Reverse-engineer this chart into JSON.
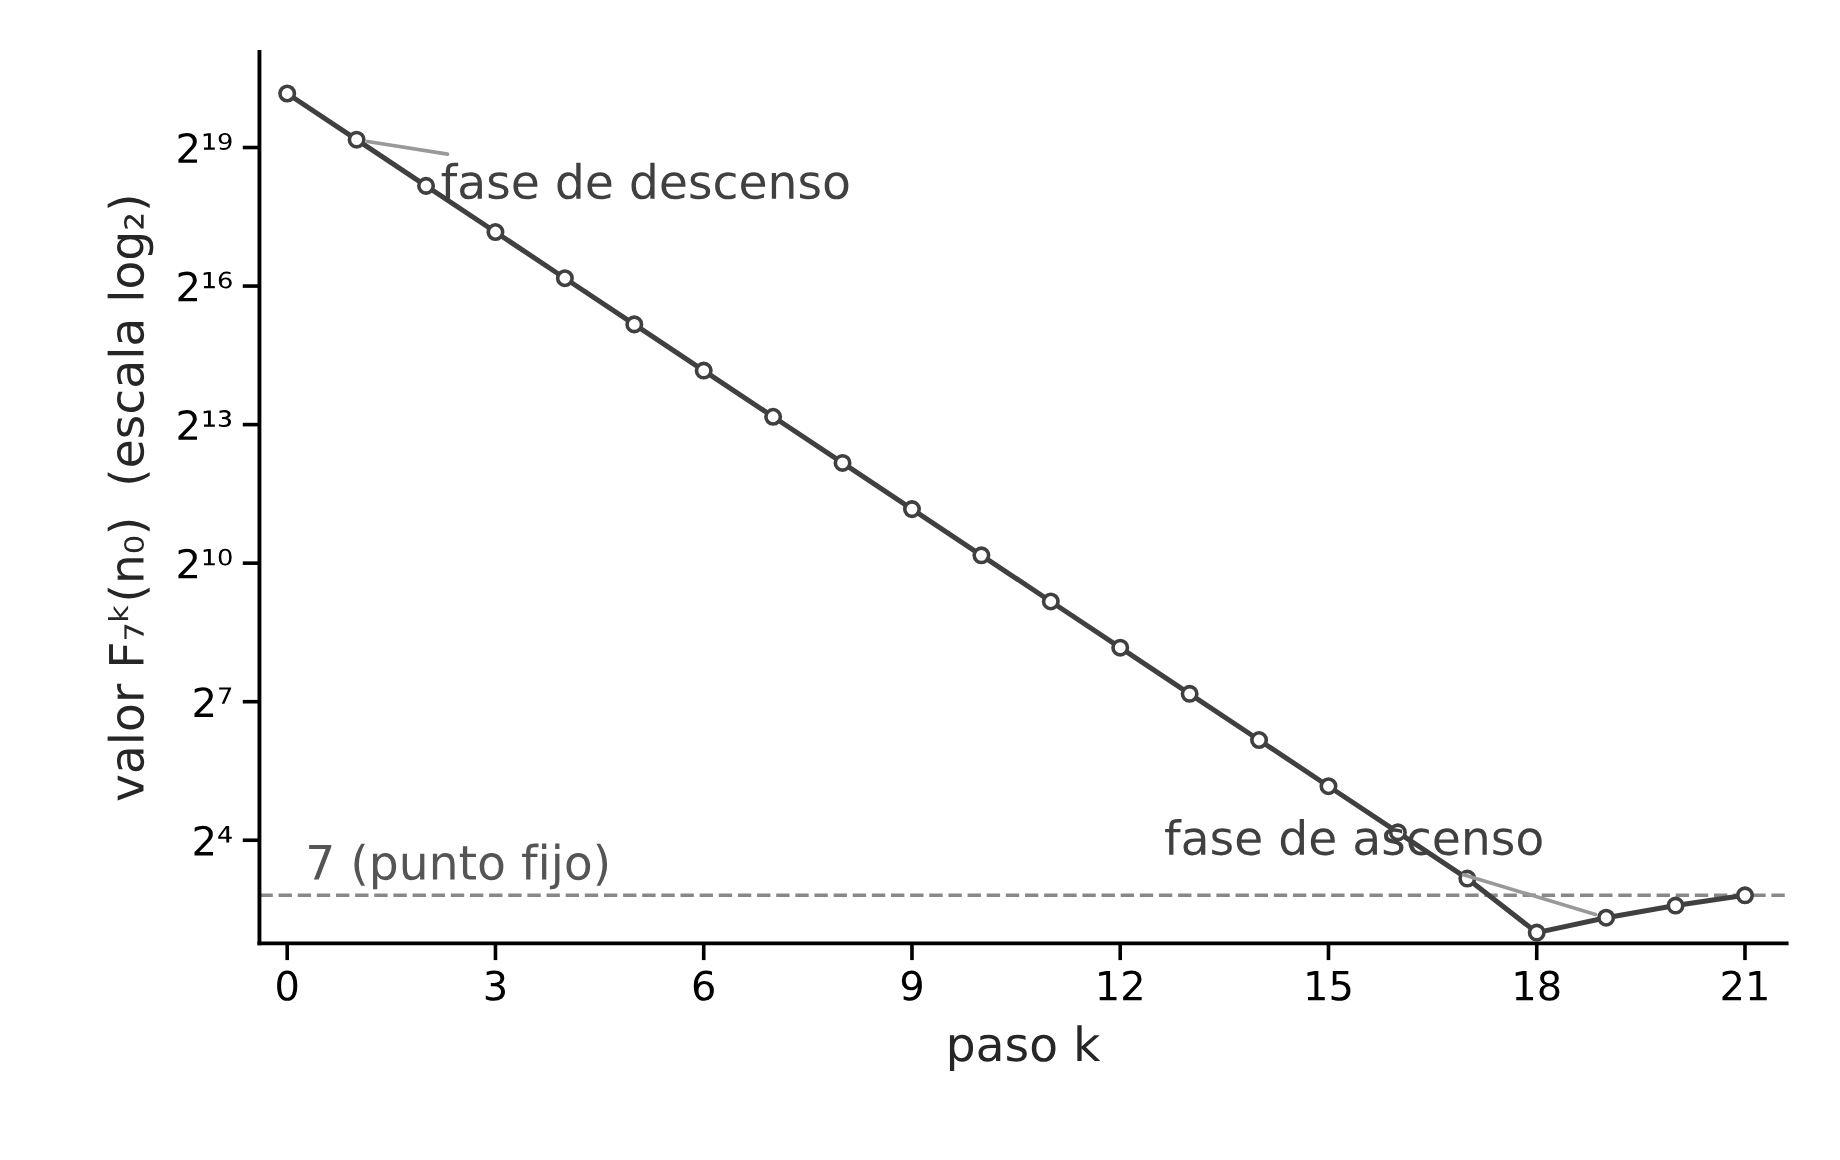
{
  "chart_data": {
    "type": "line",
    "xlabel": "paso k",
    "ylabel": "valor F₇ᵏ(n₀)  (escala log₂)",
    "x": [
      0,
      1,
      2,
      3,
      4,
      5,
      6,
      7,
      8,
      9,
      10,
      11,
      12,
      13,
      14,
      15,
      16,
      17,
      18,
      19,
      20,
      21
    ],
    "series": [
      {
        "color": "#404040",
        "values": [
          1179648,
          589824,
          294912,
          147456,
          73728,
          36864,
          18432,
          9216,
          4608,
          2304,
          1152,
          576,
          288,
          144,
          72,
          36,
          18,
          9,
          4,
          5,
          6,
          7
        ]
      }
    ],
    "marker": "circle",
    "line_style": "solid",
    "log": "y",
    "xlim": [
      -0.4,
      21.6
    ],
    "ylim": [
      3.4,
      2200000
    ],
    "xticks": [
      0,
      3,
      6,
      9,
      12,
      15,
      18,
      21
    ],
    "yticks": [
      {
        "value": 16,
        "label": "2⁴"
      },
      {
        "value": 128,
        "label": "2⁷"
      },
      {
        "value": 1024,
        "label": "2¹⁰"
      },
      {
        "value": 8192,
        "label": "2¹³"
      },
      {
        "value": 65536,
        "label": "2¹⁶"
      },
      {
        "value": 524288,
        "label": "2¹⁹"
      }
    ],
    "ref_lines": [
      {
        "axis": "y",
        "value": 7,
        "label": "7 (punto fijo)",
        "color": "#888888",
        "line_style": "dashed"
      }
    ],
    "annotations": [
      {
        "text": "fase de descenso",
        "x": 1,
        "y": 589824
      },
      {
        "text": "fase de ascenso",
        "x": 19,
        "y": 5
      }
    ]
  }
}
